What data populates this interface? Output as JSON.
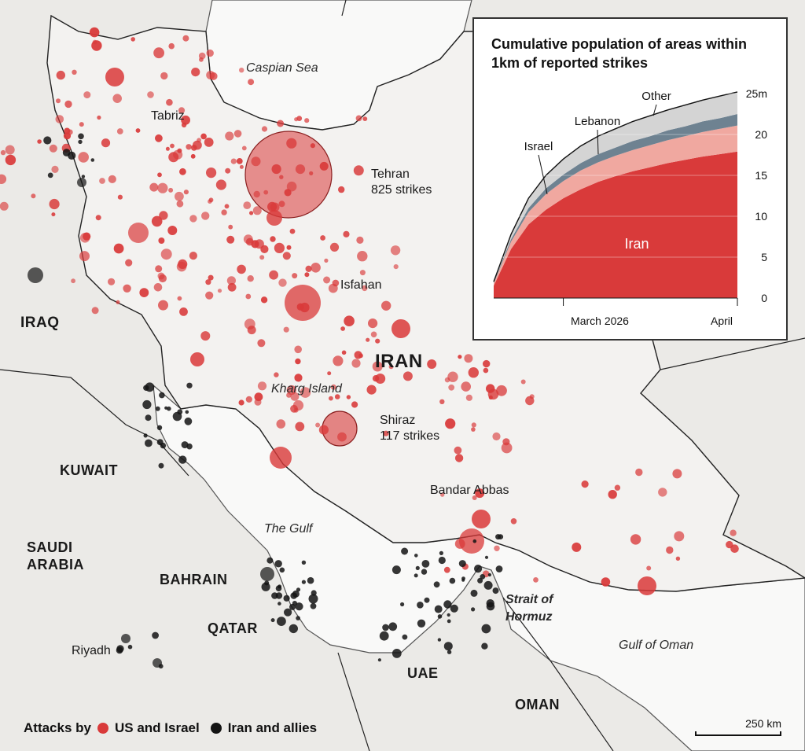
{
  "map": {
    "colors": {
      "us_israel": "#d93a3a",
      "iran_allies": "#141414",
      "land_iran": "#f2f1ef",
      "land_other": "#e9e8e5",
      "sea": "#f7f7f6"
    },
    "labels": {
      "caspian": "Caspian Sea",
      "tabriz": "Tabriz",
      "tehran_1": "Tehran",
      "tehran_2": "825 strikes",
      "isfahan": "Isfahan",
      "iran": "IRAN",
      "iraq": "IRAQ",
      "kharg": "Kharg Island",
      "shiraz_1": "Shiraz",
      "shiraz_2": "117 strikes",
      "kuwait": "KUWAIT",
      "saudi_1": "SAUDI",
      "saudi_2": "ARABIA",
      "the_gulf": "The Gulf",
      "bandar_abbas": "Bandar Abbas",
      "bahrain": "BAHRAIN",
      "qatar": "QATAR",
      "strait_1": "Strait of",
      "strait_2": "Hormuz",
      "riyadh": "Riyadh",
      "uae": "UAE",
      "gulf_of_oman": "Gulf of Oman",
      "oman": "OMAN"
    },
    "legend": {
      "prefix": "Attacks by",
      "us_israel": "US and Israel",
      "iran_allies": "Iran and allies"
    },
    "scale_label": "250 km"
  },
  "chart_data": {
    "type": "area",
    "title": "Cumulative population of areas within 1km of reported strikes",
    "x_tick_labels": [
      "March 2026",
      "April"
    ],
    "y_ticks": [
      "0",
      "5",
      "10",
      "15",
      "20",
      "25m"
    ],
    "ylim": [
      0,
      25
    ],
    "stacked": true,
    "series": [
      {
        "name": "Iran",
        "color": "#d93a3a",
        "values": [
          1.5,
          6,
          9,
          10.8,
          12.2,
          13.3,
          14.2,
          14.9,
          15.5,
          16,
          16.5,
          16.9,
          17.3,
          17.6,
          17.9
        ]
      },
      {
        "name": "Israel",
        "color": "#f0a8a0",
        "values": [
          0.3,
          0.9,
          1.5,
          1.9,
          2.1,
          2.3,
          2.4,
          2.5,
          2.6,
          2.7,
          2.8,
          2.9,
          3.0,
          3.1,
          3.2
        ]
      },
      {
        "name": "Lebanon",
        "color": "#6e8291",
        "values": [
          0.1,
          0.3,
          0.5,
          0.7,
          0.8,
          0.9,
          1.0,
          1.0,
          1.1,
          1.1,
          1.2,
          1.2,
          1.3,
          1.3,
          1.4
        ]
      },
      {
        "name": "Other",
        "color": "#d4d4d4",
        "values": [
          0.1,
          0.6,
          1.2,
          1.6,
          1.9,
          2.1,
          2.2,
          2.3,
          2.4,
          2.5,
          2.5,
          2.6,
          2.6,
          2.7,
          2.7
        ]
      }
    ]
  }
}
